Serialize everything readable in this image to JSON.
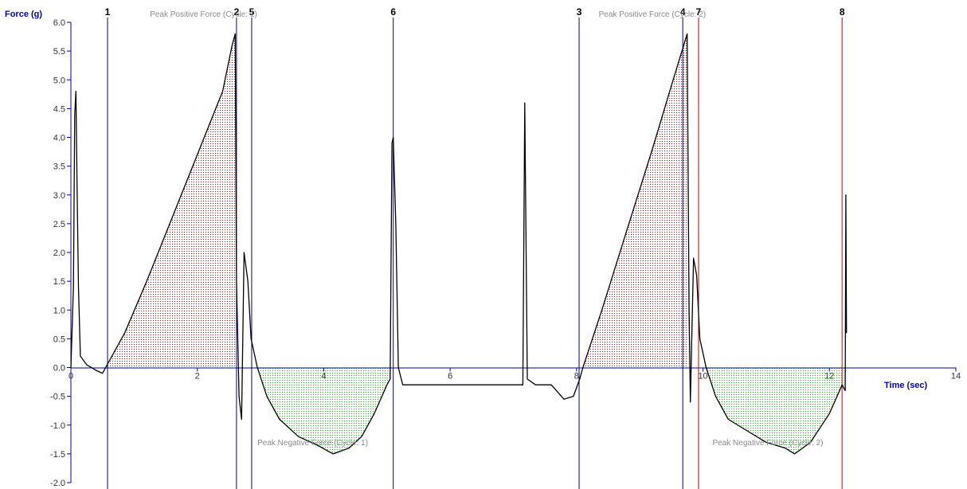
{
  "chart_data": {
    "type": "line",
    "xlabel": "Time (sec)",
    "ylabel": "Force (g)",
    "xlim": [
      0,
      14
    ],
    "ylim": [
      -2.0,
      6.0
    ],
    "x_ticks": [
      "0",
      "2",
      "4",
      "6",
      "8",
      "10",
      "12",
      "14"
    ],
    "y_ticks": [
      "6.0",
      "5.5",
      "5.0",
      "4.5",
      "4.0",
      "3.5",
      "3.0",
      "2.5",
      "2.0",
      "1.5",
      "1.0",
      "0.5",
      "0.0",
      "-0.5",
      "-1.0",
      "-1.5",
      "-2.0"
    ],
    "grid": false,
    "colors": {
      "trace": "#000000",
      "axis": "#0000aa",
      "marker_blue": "#000080",
      "marker_red": "#cc0000",
      "positive_fill": "#cc0000",
      "negative_fill": "#00cc00"
    },
    "series": [
      {
        "points": [
          [
            0.0,
            0.0
          ],
          [
            0.04,
            1.4
          ],
          [
            0.06,
            4.4
          ],
          [
            0.08,
            4.8
          ],
          [
            0.1,
            3.0
          ],
          [
            0.12,
            1.4
          ],
          [
            0.15,
            0.2
          ],
          [
            0.25,
            0.05
          ],
          [
            0.4,
            -0.05
          ],
          [
            0.5,
            -0.1
          ],
          [
            0.55,
            0.0
          ],
          [
            0.85,
            0.6
          ],
          [
            1.2,
            1.5
          ],
          [
            1.6,
            2.6
          ],
          [
            2.0,
            3.7
          ],
          [
            2.4,
            4.8
          ],
          [
            2.55,
            5.6
          ],
          [
            2.6,
            5.8
          ],
          [
            2.62,
            1.5
          ],
          [
            2.66,
            -0.5
          ],
          [
            2.7,
            -0.9
          ],
          [
            2.74,
            2.0
          ],
          [
            2.8,
            1.5
          ],
          [
            2.85,
            0.5
          ],
          [
            2.95,
            0.0
          ],
          [
            3.1,
            -0.5
          ],
          [
            3.3,
            -0.9
          ],
          [
            3.6,
            -1.2
          ],
          [
            3.9,
            -1.35
          ],
          [
            4.15,
            -1.5
          ],
          [
            4.4,
            -1.4
          ],
          [
            4.6,
            -1.2
          ],
          [
            4.8,
            -0.8
          ],
          [
            5.0,
            -0.3
          ],
          [
            5.05,
            -0.2
          ],
          [
            5.08,
            3.9
          ],
          [
            5.1,
            4.0
          ],
          [
            5.14,
            2.5
          ],
          [
            5.18,
            0.0
          ],
          [
            5.25,
            -0.3
          ],
          [
            5.6,
            -0.3
          ],
          [
            6.0,
            -0.3
          ],
          [
            6.5,
            -0.3
          ],
          [
            7.0,
            -0.3
          ],
          [
            7.15,
            -0.3
          ],
          [
            7.18,
            4.6
          ],
          [
            7.22,
            -0.2
          ],
          [
            7.35,
            -0.3
          ],
          [
            7.6,
            -0.3
          ],
          [
            7.8,
            -0.55
          ],
          [
            7.95,
            -0.5
          ],
          [
            8.05,
            -0.2
          ],
          [
            8.1,
            0.0
          ],
          [
            8.4,
            1.0
          ],
          [
            8.8,
            2.4
          ],
          [
            9.2,
            3.8
          ],
          [
            9.5,
            4.9
          ],
          [
            9.75,
            5.8
          ],
          [
            9.78,
            1.0
          ],
          [
            9.8,
            -0.6
          ],
          [
            9.85,
            1.9
          ],
          [
            9.9,
            1.6
          ],
          [
            9.95,
            0.5
          ],
          [
            10.05,
            0.0
          ],
          [
            10.2,
            -0.5
          ],
          [
            10.4,
            -0.9
          ],
          [
            10.7,
            -1.1
          ],
          [
            11.0,
            -1.3
          ],
          [
            11.3,
            -1.4
          ],
          [
            11.45,
            -1.5
          ],
          [
            11.7,
            -1.3
          ],
          [
            12.0,
            -0.8
          ],
          [
            12.2,
            -0.3
          ],
          [
            12.25,
            -0.4
          ],
          [
            12.26,
            3.0
          ],
          [
            12.27,
            0.6
          ]
        ]
      }
    ],
    "positive_regions": [
      [
        0.58,
        2.62
      ],
      [
        8.1,
        9.77
      ]
    ],
    "negative_regions": [
      [
        2.94,
        5.05
      ],
      [
        10.02,
        12.23
      ]
    ],
    "markers": [
      {
        "label": "1",
        "x": 0.58,
        "color": "#000080"
      },
      {
        "label": "2",
        "x": 2.62,
        "color": "#000080"
      },
      {
        "label": "5",
        "x": 2.86,
        "color": "#000080"
      },
      {
        "label": "6",
        "x": 5.1,
        "color": "#000080"
      },
      {
        "label": "3",
        "x": 8.04,
        "color": "#000080"
      },
      {
        "label": "4",
        "x": 9.68,
        "color": "#000080"
      },
      {
        "label": "7",
        "x": 9.93,
        "color": "#cc0000"
      },
      {
        "label": "8",
        "x": 12.2,
        "color": "#cc0000"
      }
    ],
    "annotations": [
      {
        "text": "Peak Positive Force (Cycle: 1)",
        "x": 1.25,
        "y": 6.1
      },
      {
        "text": "Peak Positive Force (Cycle: 2)",
        "x": 8.35,
        "y": 6.1
      },
      {
        "text": "Peak Negative Force (Cycle: 1)",
        "x": 2.95,
        "y": -1.35
      },
      {
        "text": "Peak Negative Force (Cycle: 2)",
        "x": 10.15,
        "y": -1.35
      }
    ]
  }
}
